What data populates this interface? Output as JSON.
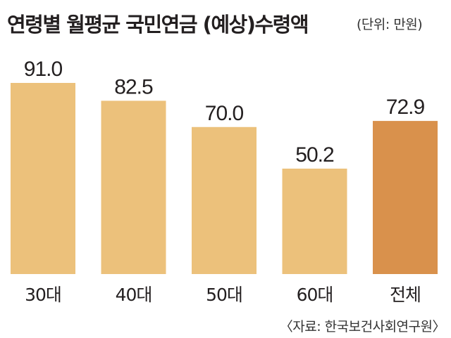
{
  "title": "연령별 월평균 국민연금 (예상)수령액",
  "unit_note": "(단위: 만원)",
  "source": "〈자료: 한국보건사회연구원〉",
  "colors": {
    "bar_default": "#ecc17b",
    "bar_highlight": "#d9914c",
    "text": "#231f20"
  },
  "chart_data": {
    "type": "bar",
    "title": "연령별 월평균 국민연금 (예상)수령액",
    "unit": "만원",
    "categories": [
      "30대",
      "40대",
      "50대",
      "60대",
      "전체"
    ],
    "values": [
      91.0,
      82.5,
      70.0,
      50.2,
      72.9
    ],
    "value_labels": [
      "91.0",
      "82.5",
      "70.0",
      "50.2",
      "72.9"
    ],
    "highlight": [
      "전체"
    ],
    "xlabel": "",
    "ylabel": "",
    "grid": false,
    "legend": "none"
  }
}
